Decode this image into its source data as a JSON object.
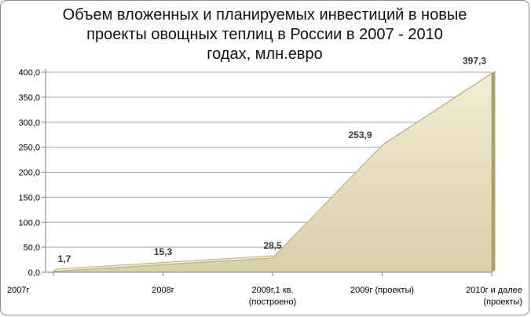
{
  "chart_data": {
    "type": "area",
    "title_lines": [
      "Объем вложенных и планируемых инвестиций в новые",
      "проекты овощных теплиц в России в 2007 - 2010",
      "годах, млн.евро"
    ],
    "categories": [
      [
        "2007г"
      ],
      [
        "2008г"
      ],
      [
        "2009г,1 кв.",
        "(построено)"
      ],
      [
        "2009г (проекты)"
      ],
      [
        "2010г и далее",
        "(проекты)"
      ]
    ],
    "values": [
      1.7,
      15.3,
      28.5,
      253.9,
      397.3
    ],
    "data_labels": [
      "1,7",
      "15,3",
      "28,5",
      "253,9",
      "397,3"
    ],
    "y_ticks": [
      "0,0",
      "50,0",
      "100,0",
      "150,0",
      "200,0",
      "250,0",
      "300,0",
      "350,0",
      "400,0"
    ],
    "ylim": [
      0,
      400
    ],
    "y_step": 50,
    "grid": true,
    "legend": "none",
    "colors": {
      "area_fill": "#d8d0a8",
      "area_top": "#f2ecd2",
      "area_edge": "#b9ae7f",
      "area_dark": "#a89c68",
      "grid": "#a6a6a6",
      "axis": "#7f7f7f"
    }
  }
}
